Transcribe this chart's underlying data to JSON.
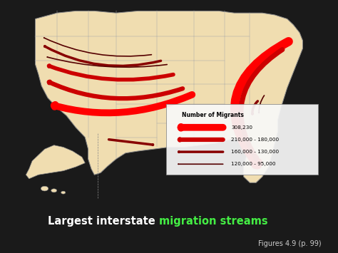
{
  "background_color": "#1a1a1a",
  "map_bg_color": "#b8d4e8",
  "land_color": "#f0ddb0",
  "border_color": "#888888",
  "title_white": "Largest interstate ",
  "title_green": "migration streams",
  "title_color": "#ffffff",
  "title_highlight_color": "#44ee44",
  "figures_text": "Figures 4.9 (p. 99)",
  "figures_color": "#cccccc",
  "legend_title": "Number of Migrants",
  "legend_items": [
    {
      "label": "308,230",
      "color": "#ff0000",
      "lw": 7
    },
    {
      "label": "210,000 - 180,000",
      "color": "#cc0000",
      "lw": 4.5
    },
    {
      "label": "160,000 - 130,000",
      "color": "#880000",
      "lw": 2.5
    },
    {
      "label": "120,000 - 95,000",
      "color": "#550000",
      "lw": 1.2
    }
  ]
}
